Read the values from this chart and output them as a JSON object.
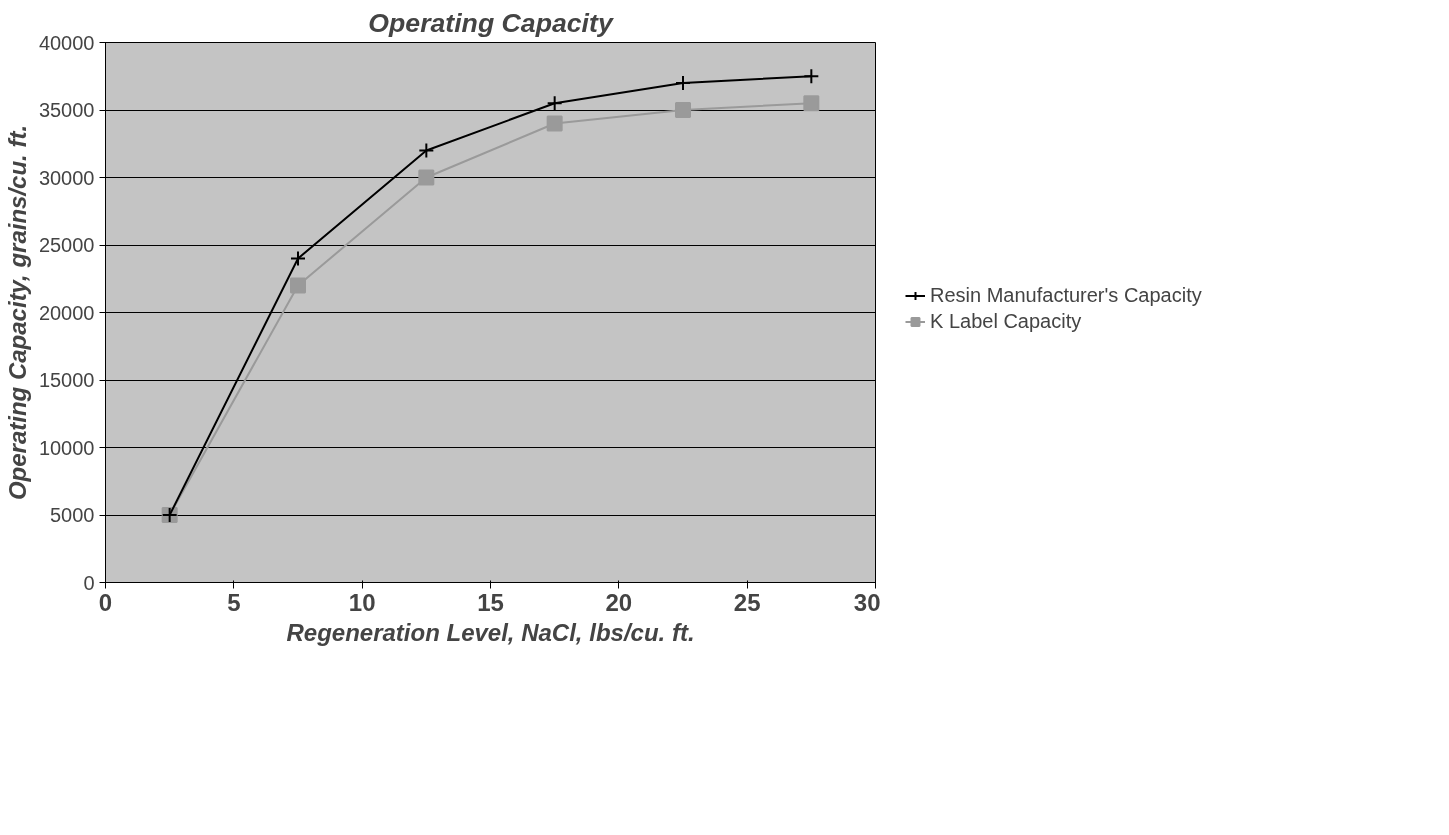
{
  "chart_data": {
    "type": "line",
    "title": "Operating Capacity",
    "xlabel": "Regeneration Level, NaCl, lbs/cu. ft.",
    "ylabel": "Operating Capacity, grains/cu. ft.",
    "x": [
      2.5,
      7.5,
      12.5,
      17.5,
      22.5,
      27.5
    ],
    "series": [
      {
        "name": "Resin Manufacturer's Capacity",
        "color": "#000000",
        "marker": "cross",
        "values": [
          5000,
          24000,
          32000,
          35500,
          37000,
          37500
        ]
      },
      {
        "name": "K Label Capacity",
        "color": "#9a9a9a",
        "marker": "square",
        "values": [
          5000,
          22000,
          30000,
          34000,
          35000,
          35500
        ]
      }
    ],
    "xlim": [
      0,
      30
    ],
    "xticks": [
      0,
      5,
      10,
      15,
      20,
      25,
      30
    ],
    "ylim": [
      0,
      40000
    ],
    "yticks": [
      0,
      5000,
      10000,
      15000,
      20000,
      25000,
      30000,
      35000,
      40000
    ],
    "grid": "y",
    "legend": "right",
    "line_style": "solid"
  }
}
